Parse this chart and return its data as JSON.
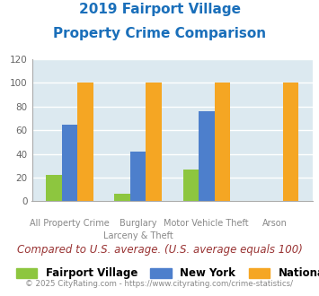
{
  "title_line1": "2019 Fairport Village",
  "title_line2": "Property Crime Comparison",
  "title_color": "#1a6fba",
  "cat_labels_line1": [
    "All Property Crime",
    "Burglary",
    "Motor Vehicle Theft",
    "Arson"
  ],
  "cat_labels_line2": [
    "",
    "Larceny & Theft",
    "",
    ""
  ],
  "series": {
    "Fairport Village": [
      22,
      6,
      27,
      0
    ],
    "New York": [
      65,
      42,
      76,
      0
    ],
    "National": [
      100,
      100,
      100,
      100
    ]
  },
  "colors": {
    "Fairport Village": "#8dc63f",
    "New York": "#4d7fcc",
    "National": "#f5a623"
  },
  "ylim": [
    0,
    120
  ],
  "yticks": [
    0,
    20,
    40,
    60,
    80,
    100,
    120
  ],
  "plot_bg_color": "#dce9f0",
  "grid_color": "#ffffff",
  "note_text": "Compared to U.S. average. (U.S. average equals 100)",
  "note_color": "#993333",
  "copyright_text": "© 2025 CityRating.com - https://www.cityrating.com/crime-statistics/",
  "copyright_color": "#888888",
  "bar_width": 0.23,
  "series_names": [
    "Fairport Village",
    "New York",
    "National"
  ]
}
